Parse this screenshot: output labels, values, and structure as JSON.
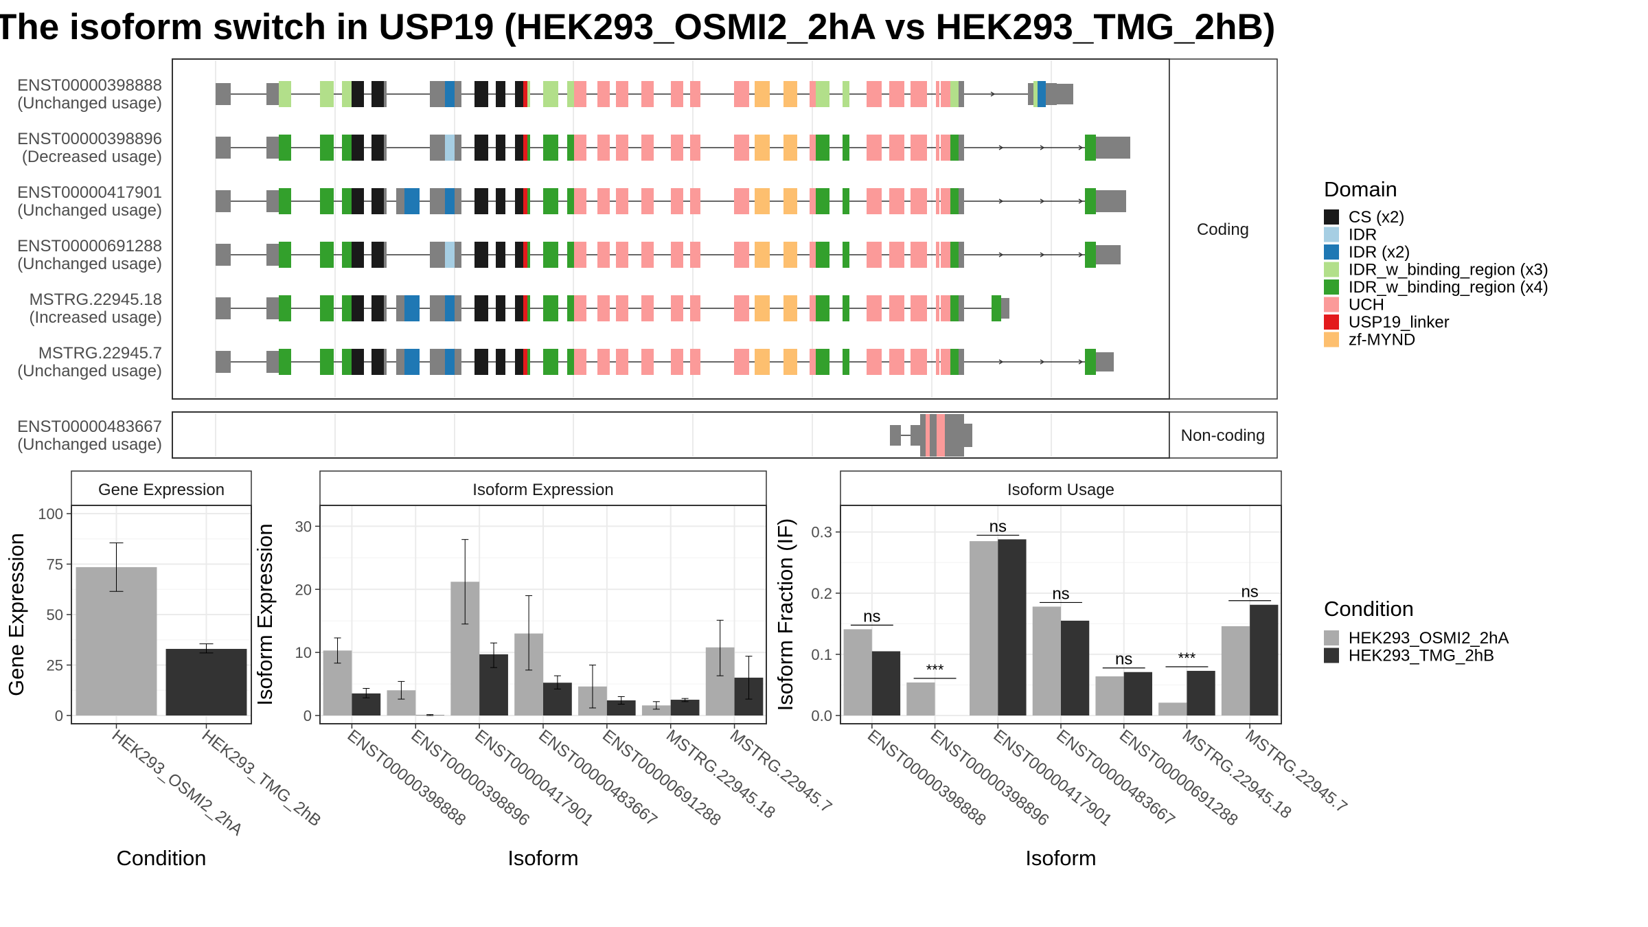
{
  "title": "The isoform switch in USP19 (HEK293_OSMI2_2hA vs HEK293_TMG_2hB)",
  "colors": {
    "condition_a": "#ababab",
    "condition_b": "#333333",
    "utr": "#808080",
    "domain_CS": "#1a1a1a",
    "domain_IDR": "#a6cee3",
    "domain_IDR_x2": "#1f78b4",
    "domain_IDR_bind_x3": "#b2df8a",
    "domain_IDR_bind_x4": "#33a02c",
    "domain_UCH": "#fb9a99",
    "domain_linker": "#e31a1c",
    "domain_zf": "#fdbf6f"
  },
  "structure": {
    "coding_strip": "Coding",
    "noncoding_strip": "Non-coding",
    "coding_transcripts": [
      {
        "id": "ENST00000398888",
        "status": "(Unchanged usage)"
      },
      {
        "id": "ENST00000398896",
        "status": "(Decreased usage)"
      },
      {
        "id": "ENST00000417901",
        "status": "(Unchanged usage)"
      },
      {
        "id": "ENST00000691288",
        "status": "(Unchanged usage)"
      },
      {
        "id": "MSTRG.22945.18",
        "status": "(Increased usage)"
      },
      {
        "id": "MSTRG.22945.7",
        "status": "(Unchanged usage)"
      }
    ],
    "noncoding_transcripts": [
      {
        "id": "ENST00000483667",
        "status": "(Unchanged usage)"
      }
    ]
  },
  "domain_legend": {
    "title": "Domain",
    "items": [
      {
        "label": "CS (x2)",
        "color_key": "domain_CS"
      },
      {
        "label": "IDR",
        "color_key": "domain_IDR"
      },
      {
        "label": "IDR (x2)",
        "color_key": "domain_IDR_x2"
      },
      {
        "label": "IDR_w_binding_region (x3)",
        "color_key": "domain_IDR_bind_x3"
      },
      {
        "label": "IDR_w_binding_region (x4)",
        "color_key": "domain_IDR_bind_x4"
      },
      {
        "label": "UCH",
        "color_key": "domain_UCH"
      },
      {
        "label": "USP19_linker",
        "color_key": "domain_linker"
      },
      {
        "label": "zf-MYND",
        "color_key": "domain_zf"
      }
    ]
  },
  "condition_legend": {
    "title": "Condition",
    "items": [
      {
        "label": "HEK293_OSMI2_2hA",
        "color_key": "condition_a"
      },
      {
        "label": "HEK293_TMG_2hB",
        "color_key": "condition_b"
      }
    ]
  },
  "chart_data": [
    {
      "type": "bar",
      "title": "Gene Expression",
      "xlabel": "Condition",
      "ylabel": "Gene Expression",
      "ylim": [
        0,
        100
      ],
      "yticks": [
        0,
        25,
        50,
        75,
        100
      ],
      "grid": true,
      "categories": [
        "HEK293_OSMI2_2hA",
        "HEK293_TMG_2hB"
      ],
      "values": [
        73.5,
        33
      ],
      "error_low": [
        61.5,
        31
      ],
      "error_high": [
        85.5,
        35.5
      ]
    },
    {
      "type": "bar",
      "title": "Isoform Expression",
      "xlabel": "Isoform",
      "ylabel": "Isoform Expression",
      "ylim": [
        0,
        32
      ],
      "yticks": [
        0,
        10,
        20,
        30
      ],
      "grid": true,
      "categories": [
        "ENST00000398888",
        "ENST00000398896",
        "ENST00000417901",
        "ENST00000483667",
        "ENST00000691288",
        "MSTRG.22945.18",
        "MSTRG.22945.7"
      ],
      "series": [
        {
          "name": "HEK293_OSMI2_2hA",
          "values": [
            10.3,
            4.0,
            21.2,
            13.0,
            4.6,
            1.6,
            10.8
          ],
          "error_low": [
            8.3,
            2.6,
            14.5,
            7.2,
            1.2,
            1.0,
            6.3
          ],
          "error_high": [
            12.3,
            5.4,
            27.9,
            19.0,
            8.0,
            2.2,
            15.1
          ]
        },
        {
          "name": "HEK293_TMG_2hB",
          "values": [
            3.5,
            0.05,
            9.7,
            5.2,
            2.4,
            2.5,
            6.0
          ],
          "error_low": [
            2.8,
            0,
            7.6,
            4.2,
            1.8,
            2.2,
            2.6
          ],
          "error_high": [
            4.3,
            0.15,
            11.5,
            6.3,
            3.0,
            2.7,
            9.4
          ]
        }
      ]
    },
    {
      "type": "bar",
      "title": "Isoform Usage",
      "xlabel": "Isoform",
      "ylabel": "Isoform Fraction (IF)",
      "ylim": [
        0,
        0.33
      ],
      "yticks": [
        0.0,
        0.1,
        0.2,
        0.3
      ],
      "yticklabels": [
        "0.0",
        "0.1",
        "0.2",
        "0.3"
      ],
      "grid": true,
      "categories": [
        "ENST00000398888",
        "ENST00000398896",
        "ENST00000417901",
        "ENST00000483667",
        "ENST00000691288",
        "MSTRG.22945.18",
        "MSTRG.22945.7"
      ],
      "series": [
        {
          "name": "HEK293_OSMI2_2hA",
          "values": [
            0.141,
            0.054,
            0.285,
            0.178,
            0.064,
            0.021,
            0.146
          ]
        },
        {
          "name": "HEK293_TMG_2hB",
          "values": [
            0.105,
            0.0,
            0.288,
            0.155,
            0.071,
            0.073,
            0.181
          ]
        }
      ],
      "significance": [
        "ns",
        "***",
        "ns",
        "ns",
        "ns",
        "***",
        "ns"
      ]
    }
  ]
}
